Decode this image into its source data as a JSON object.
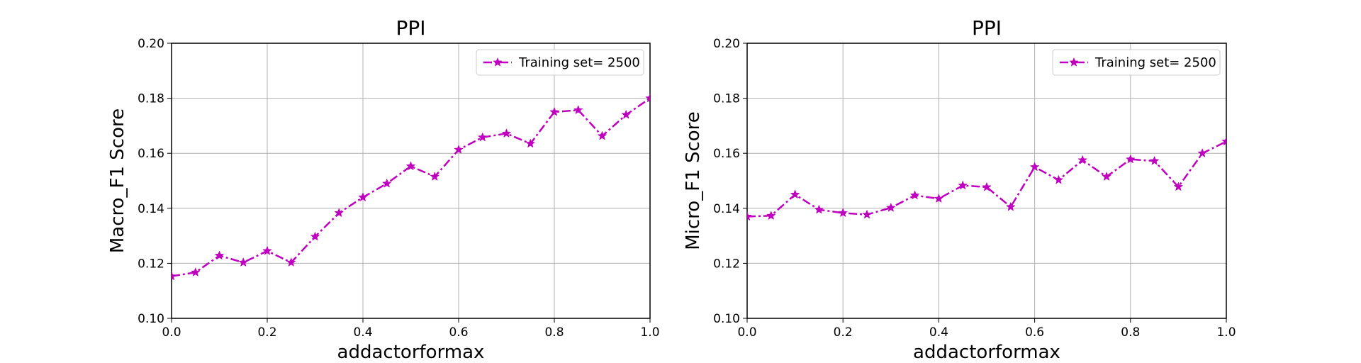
{
  "colors": {
    "series": "#bf00bf",
    "grid": "#b0b0b0",
    "axes": "#000000",
    "legend_border": "#cccccc"
  },
  "chart_data": [
    {
      "type": "line",
      "title": "PPI",
      "xlabel": "addactorformax",
      "ylabel": "Macro_F1 Score",
      "xlim": [
        0.0,
        1.0
      ],
      "ylim": [
        0.1,
        0.2
      ],
      "xticks": [
        "0.0",
        "0.2",
        "0.4",
        "0.6",
        "0.8",
        "1.0"
      ],
      "yticks": [
        "0.10",
        "0.12",
        "0.14",
        "0.16",
        "0.18",
        "0.20"
      ],
      "grid": true,
      "legend_position": "top-right",
      "line_style": "dash-dot",
      "marker": "star",
      "x": [
        0.0,
        0.05,
        0.1,
        0.15,
        0.2,
        0.25,
        0.3,
        0.35,
        0.4,
        0.45,
        0.5,
        0.55,
        0.6,
        0.65,
        0.7,
        0.75,
        0.8,
        0.85,
        0.9,
        0.95,
        1.0
      ],
      "series": [
        {
          "name": "Training set= 2500",
          "values": [
            0.1153,
            0.1167,
            0.1228,
            0.1203,
            0.1245,
            0.1203,
            0.1297,
            0.1383,
            0.144,
            0.149,
            0.1553,
            0.1515,
            0.1613,
            0.1658,
            0.1672,
            0.1635,
            0.175,
            0.1757,
            0.1663,
            0.174,
            0.18
          ]
        }
      ]
    },
    {
      "type": "line",
      "title": "PPI",
      "xlabel": "addactorformax",
      "ylabel": "Micro_F1 Score",
      "xlim": [
        0.0,
        1.0
      ],
      "ylim": [
        0.1,
        0.2
      ],
      "xticks": [
        "0.0",
        "0.2",
        "0.4",
        "0.6",
        "0.8",
        "1.0"
      ],
      "yticks": [
        "0.10",
        "0.12",
        "0.14",
        "0.16",
        "0.18",
        "0.20"
      ],
      "grid": true,
      "legend_position": "top-right",
      "line_style": "dash-dot",
      "marker": "star",
      "x": [
        0.0,
        0.05,
        0.1,
        0.15,
        0.2,
        0.25,
        0.3,
        0.35,
        0.4,
        0.45,
        0.5,
        0.55,
        0.6,
        0.65,
        0.7,
        0.75,
        0.8,
        0.85,
        0.9,
        0.95,
        1.0
      ],
      "series": [
        {
          "name": "Training set= 2500",
          "values": [
            0.137,
            0.1373,
            0.145,
            0.1395,
            0.1383,
            0.1377,
            0.1402,
            0.1447,
            0.1435,
            0.1483,
            0.1477,
            0.1405,
            0.155,
            0.1503,
            0.1575,
            0.1515,
            0.1578,
            0.1572,
            0.1478,
            0.16,
            0.1643
          ]
        }
      ]
    }
  ]
}
